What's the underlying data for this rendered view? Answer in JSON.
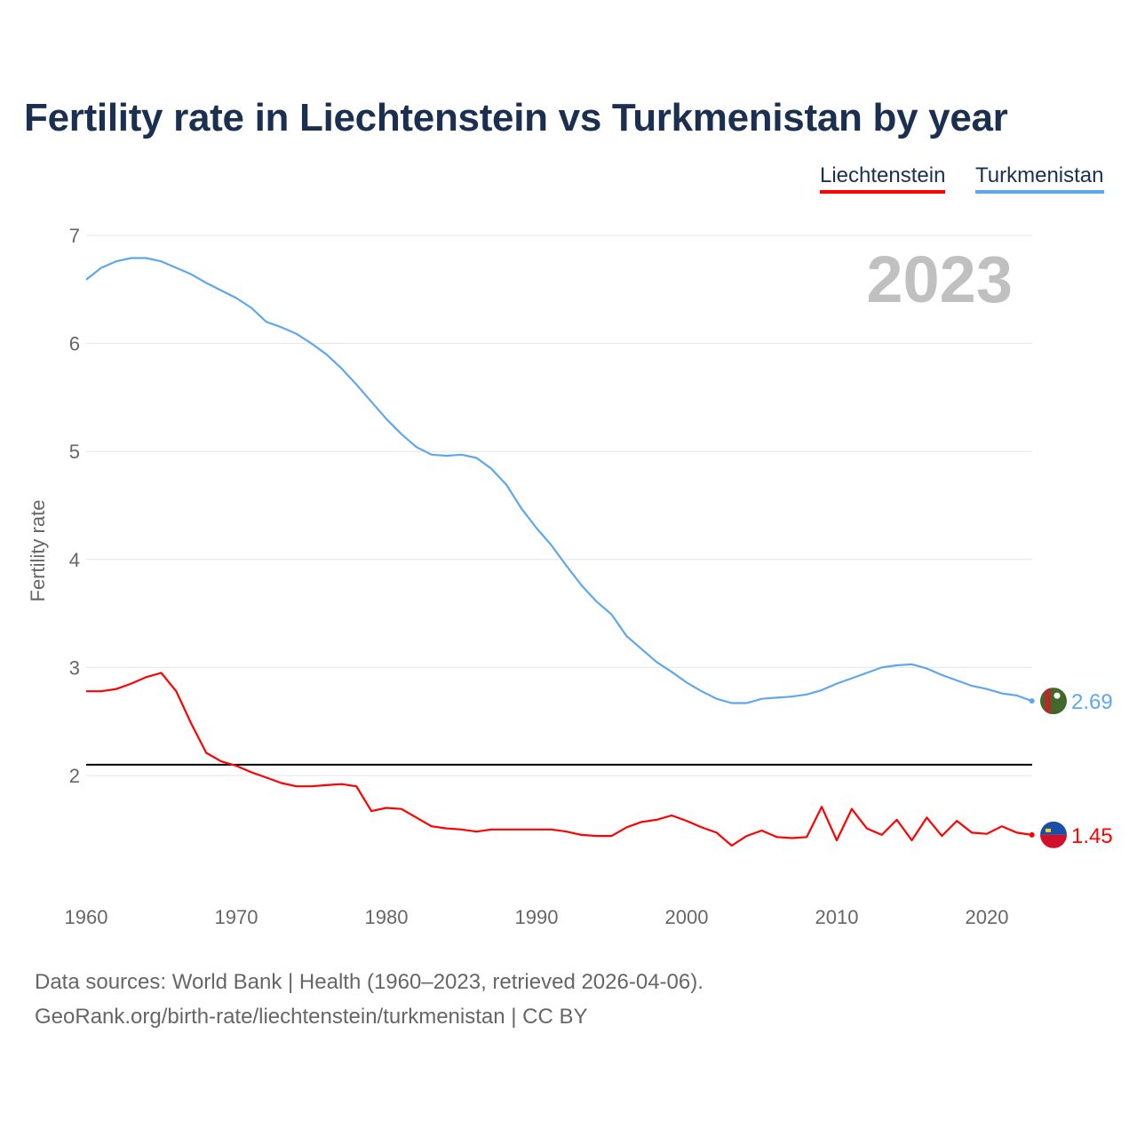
{
  "chart_data": {
    "type": "line",
    "title": "Fertility rate in Liechtenstein vs Turkmenistan by year",
    "ylabel": "Fertility rate",
    "xlabel": "",
    "xlim": [
      1960,
      2023
    ],
    "ylim": [
      1.0,
      7.0
    ],
    "yticks": [
      "2",
      "3",
      "4",
      "5",
      "6",
      "7"
    ],
    "xticks": [
      "1960",
      "1970",
      "1980",
      "1990",
      "2000",
      "2010",
      "2020"
    ],
    "grid": true,
    "legend_position": "top-right",
    "year_label": "2023",
    "reference_line": 2.1,
    "x_start": 1960,
    "series": [
      {
        "name": "Liechtenstein",
        "color": "#ff0000",
        "end_label": "1.45",
        "values": [
          2.78,
          2.78,
          2.8,
          2.85,
          2.91,
          2.95,
          2.78,
          2.48,
          2.21,
          2.13,
          2.09,
          2.03,
          1.98,
          1.93,
          1.9,
          1.9,
          1.91,
          1.92,
          1.9,
          1.67,
          1.7,
          1.69,
          1.61,
          1.53,
          1.51,
          1.5,
          1.48,
          1.5,
          1.5,
          1.5,
          1.5,
          1.5,
          1.48,
          1.45,
          1.44,
          1.44,
          1.52,
          1.57,
          1.59,
          1.63,
          1.58,
          1.52,
          1.47,
          1.35,
          1.44,
          1.49,
          1.43,
          1.42,
          1.43,
          1.71,
          1.4,
          1.69,
          1.51,
          1.45,
          1.59,
          1.4,
          1.61,
          1.44,
          1.58,
          1.47,
          1.46,
          1.53,
          1.47,
          1.45
        ]
      },
      {
        "name": "Turkmenistan",
        "color": "#5ea7ee",
        "end_label": "2.69",
        "values": [
          6.59,
          6.7,
          6.76,
          6.79,
          6.79,
          6.76,
          6.7,
          6.64,
          6.56,
          6.49,
          6.42,
          6.33,
          6.2,
          6.15,
          6.09,
          6.0,
          5.9,
          5.77,
          5.62,
          5.46,
          5.3,
          5.16,
          5.04,
          4.97,
          4.96,
          4.97,
          4.94,
          4.84,
          4.69,
          4.47,
          4.29,
          4.13,
          3.94,
          3.76,
          3.61,
          3.49,
          3.29,
          3.17,
          3.05,
          2.96,
          2.86,
          2.78,
          2.71,
          2.67,
          2.67,
          2.71,
          2.72,
          2.73,
          2.75,
          2.79,
          2.85,
          2.9,
          2.95,
          3.0,
          3.02,
          3.03,
          2.99,
          2.93,
          2.88,
          2.83,
          2.8,
          2.76,
          2.74,
          2.69
        ]
      }
    ]
  },
  "footer": {
    "line1": "Data sources: World Bank | Health (1960–2023, retrieved 2026-04-06).",
    "line2": "GeoRank.org/birth-rate/liechtenstein/turkmenistan | CC BY"
  }
}
